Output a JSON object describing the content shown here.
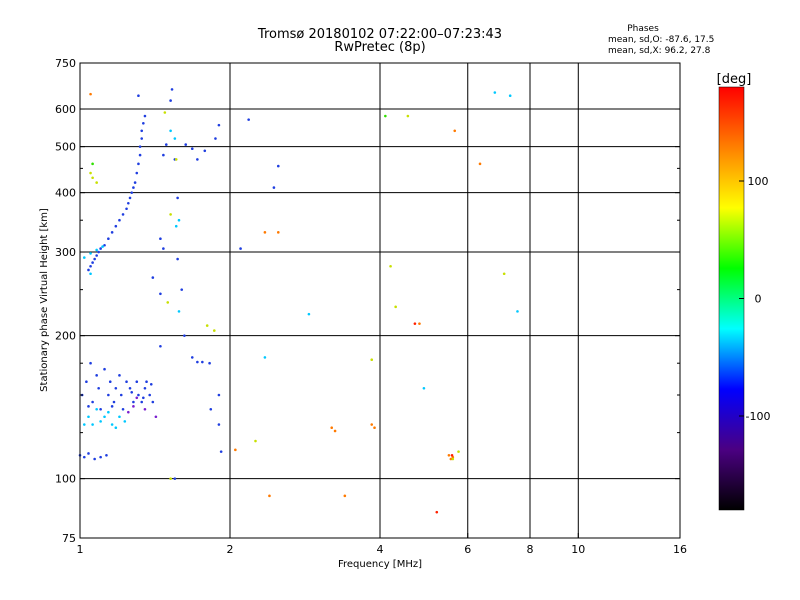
{
  "chart_data": {
    "type": "scatter",
    "title": "Tromsø 20180102 07:22:00–07:23:43",
    "subtitle": "RwPretec (8p)",
    "legend_header": "Phases",
    "legend_lines": [
      "mean, sd,O: -87.6, 17.5",
      "mean, sd,X:  96.2, 27.8"
    ],
    "xlabel": "Frequency [MHz]",
    "ylabel": "Stationary phase Virtual Height [km]",
    "x_scale": "log",
    "y_scale": "log",
    "xlim": [
      1,
      16
    ],
    "ylim": [
      75,
      750
    ],
    "grid": true,
    "x_ticks": [
      {
        "value": 1,
        "label": "1"
      },
      {
        "value": 2,
        "label": "2"
      },
      {
        "value": 4,
        "label": "4"
      },
      {
        "value": 6,
        "label": "6"
      },
      {
        "value": 8,
        "label": "8"
      },
      {
        "value": 10,
        "label": "10"
      },
      {
        "value": 16,
        "label": "16"
      }
    ],
    "x_grid": [
      2,
      4,
      6,
      8,
      10
    ],
    "y_ticks": [
      {
        "value": 75,
        "label": "75"
      },
      {
        "value": 100,
        "label": "100"
      },
      {
        "value": 200,
        "label": "200"
      },
      {
        "value": 300,
        "label": "300"
      },
      {
        "value": 400,
        "label": "400"
      },
      {
        "value": 500,
        "label": "500"
      },
      {
        "value": 600,
        "label": "600"
      },
      {
        "value": 750,
        "label": "750"
      }
    ],
    "y_grid": [
      100,
      200,
      300,
      400,
      500,
      600
    ],
    "y_minor": [
      125,
      150,
      175,
      250,
      350,
      450
    ],
    "colorbar": {
      "label": "[deg]",
      "range": [
        -180,
        180
      ],
      "ticks": [
        {
          "value": 100,
          "label": "100"
        },
        {
          "value": 0,
          "label": "0"
        },
        {
          "value": -100,
          "label": "-100"
        }
      ],
      "stops": [
        "#000000",
        "#4b0082",
        "#0000ff",
        "#00ffff",
        "#00ff00",
        "#ffff00",
        "#ff8000",
        "#ff0000"
      ]
    },
    "series": [
      {
        "color": "#1f3ee0",
        "points": [
          [
            1.0,
            112
          ],
          [
            1.02,
            111
          ],
          [
            1.04,
            113
          ],
          [
            1.07,
            110
          ],
          [
            1.1,
            111
          ],
          [
            1.13,
            112
          ],
          [
            1.01,
            150
          ],
          [
            1.03,
            160
          ],
          [
            1.05,
            175
          ],
          [
            1.06,
            145
          ],
          [
            1.08,
            165
          ],
          [
            1.09,
            155
          ],
          [
            1.1,
            140
          ],
          [
            1.12,
            170
          ],
          [
            1.14,
            150
          ],
          [
            1.15,
            160
          ],
          [
            1.17,
            145
          ],
          [
            1.18,
            155
          ],
          [
            1.2,
            165
          ],
          [
            1.21,
            150
          ],
          [
            1.22,
            140
          ],
          [
            1.24,
            160
          ],
          [
            1.26,
            155
          ],
          [
            1.28,
            145
          ],
          [
            1.3,
            160
          ],
          [
            1.31,
            150
          ],
          [
            1.33,
            145
          ],
          [
            1.35,
            155
          ],
          [
            1.36,
            160
          ],
          [
            1.38,
            150
          ],
          [
            1.4,
            145
          ],
          [
            1.39,
            158
          ],
          [
            1.34,
            148
          ],
          [
            1.27,
            152
          ],
          [
            1.16,
            142
          ],
          [
            1.04,
            142
          ],
          [
            1.04,
            275
          ],
          [
            1.05,
            280
          ],
          [
            1.06,
            285
          ],
          [
            1.07,
            290
          ],
          [
            1.08,
            295
          ],
          [
            1.09,
            300
          ],
          [
            1.1,
            305
          ],
          [
            1.12,
            310
          ],
          [
            1.14,
            320
          ],
          [
            1.16,
            330
          ],
          [
            1.18,
            340
          ],
          [
            1.2,
            350
          ],
          [
            1.22,
            360
          ],
          [
            1.24,
            370
          ],
          [
            1.25,
            380
          ],
          [
            1.26,
            390
          ],
          [
            1.27,
            400
          ],
          [
            1.28,
            410
          ],
          [
            1.29,
            420
          ],
          [
            1.3,
            440
          ],
          [
            1.31,
            460
          ],
          [
            1.32,
            480
          ],
          [
            1.32,
            500
          ],
          [
            1.33,
            520
          ],
          [
            1.33,
            540
          ],
          [
            1.34,
            560
          ],
          [
            1.35,
            580
          ],
          [
            1.31,
            640
          ],
          [
            1.49,
            505
          ],
          [
            1.47,
            480
          ],
          [
            1.55,
            470
          ],
          [
            1.57,
            390
          ],
          [
            1.63,
            505
          ],
          [
            1.68,
            495
          ],
          [
            1.72,
            470
          ],
          [
            1.78,
            490
          ],
          [
            1.87,
            520
          ],
          [
            1.9,
            555
          ],
          [
            1.53,
            660
          ],
          [
            1.52,
            625
          ],
          [
            1.45,
            320
          ],
          [
            1.47,
            305
          ],
          [
            1.57,
            290
          ],
          [
            1.6,
            250
          ],
          [
            1.62,
            200
          ],
          [
            1.45,
            190
          ],
          [
            1.68,
            180
          ],
          [
            1.72,
            176
          ],
          [
            1.76,
            176
          ],
          [
            1.82,
            175
          ],
          [
            1.9,
            150
          ],
          [
            1.9,
            130
          ],
          [
            1.92,
            114
          ],
          [
            1.83,
            140
          ],
          [
            1.55,
            100
          ],
          [
            1.4,
            265
          ],
          [
            1.45,
            245
          ],
          [
            2.1,
            305
          ],
          [
            2.18,
            570
          ],
          [
            2.45,
            410
          ],
          [
            2.5,
            455
          ]
        ]
      },
      {
        "color": "#00c8ff",
        "points": [
          [
            1.02,
            130
          ],
          [
            1.04,
            135
          ],
          [
            1.06,
            130
          ],
          [
            1.08,
            140
          ],
          [
            1.1,
            132
          ],
          [
            1.12,
            135
          ],
          [
            1.14,
            138
          ],
          [
            1.16,
            130
          ],
          [
            1.18,
            128
          ],
          [
            1.2,
            135
          ],
          [
            1.23,
            132
          ],
          [
            1.02,
            292
          ],
          [
            1.05,
            298
          ],
          [
            1.08,
            303
          ],
          [
            1.11,
            308
          ],
          [
            1.05,
            270
          ],
          [
            1.52,
            540
          ],
          [
            1.55,
            520
          ],
          [
            1.58,
            350
          ],
          [
            1.56,
            340
          ],
          [
            1.58,
            225
          ],
          [
            2.35,
            180
          ],
          [
            2.88,
            222
          ],
          [
            4.9,
            155
          ],
          [
            6.8,
            650
          ],
          [
            7.55,
            225
          ],
          [
            7.3,
            640
          ]
        ]
      },
      {
        "color": "#7b1fd0",
        "points": [
          [
            1.28,
            142
          ],
          [
            1.3,
            148
          ],
          [
            1.35,
            140
          ],
          [
            1.25,
            138
          ],
          [
            1.42,
            135
          ]
        ]
      },
      {
        "color": "#ff7a00",
        "points": [
          [
            1.05,
            645
          ],
          [
            2.35,
            330
          ],
          [
            2.5,
            330
          ],
          [
            3.85,
            130
          ],
          [
            3.9,
            128
          ],
          [
            4.8,
            212
          ],
          [
            5.5,
            112
          ],
          [
            5.55,
            110
          ],
          [
            5.6,
            111
          ],
          [
            5.65,
            540
          ],
          [
            6.35,
            460
          ],
          [
            2.4,
            92
          ],
          [
            3.4,
            92
          ],
          [
            3.2,
            128
          ],
          [
            3.25,
            126
          ],
          [
            2.05,
            115
          ]
        ]
      },
      {
        "color": "#c8e000",
        "points": [
          [
            1.05,
            440
          ],
          [
            1.08,
            420
          ],
          [
            1.06,
            430
          ],
          [
            1.5,
            235
          ],
          [
            1.52,
            360
          ],
          [
            1.48,
            590
          ],
          [
            3.85,
            178
          ],
          [
            4.2,
            280
          ],
          [
            4.3,
            230
          ],
          [
            4.55,
            580
          ],
          [
            7.1,
            270
          ],
          [
            5.6,
            110
          ],
          [
            5.75,
            114
          ],
          [
            2.25,
            120
          ],
          [
            1.52,
            100
          ],
          [
            1.56,
            470
          ],
          [
            1.8,
            210
          ],
          [
            1.86,
            205
          ]
        ]
      },
      {
        "color": "#ff2000",
        "points": [
          [
            5.2,
            85
          ],
          [
            4.7,
            212
          ],
          [
            5.58,
            112
          ]
        ]
      },
      {
        "color": "#30e000",
        "points": [
          [
            1.06,
            460
          ],
          [
            4.1,
            580
          ]
        ]
      }
    ]
  }
}
